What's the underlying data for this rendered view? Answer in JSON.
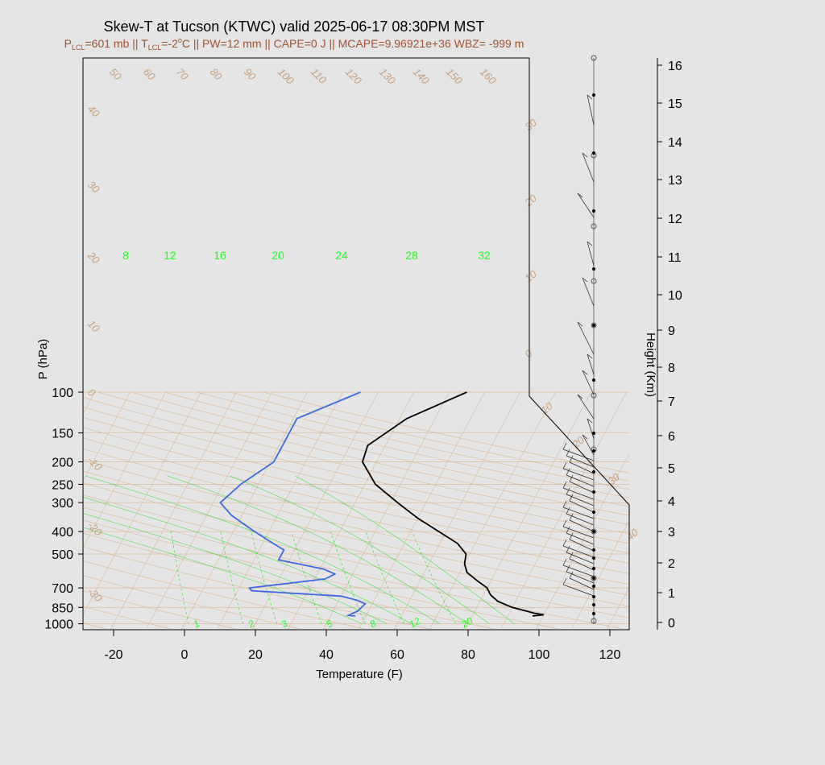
{
  "title": "Skew-T at Tucson (KTWC) valid 2025-06-17 08:30PM MST",
  "subtitle": {
    "p": "P",
    "p_sub": "LCL",
    "p_val": "=601 mb || ",
    "t": "T",
    "t_sub": "LCL",
    "t_val": "=-2",
    "t_sup": "o",
    "t_rest": "C || PW=12 mm || CAPE=0 J || MCAPE=9.96921e+36 WBZ= -999 m"
  },
  "colors": {
    "temperature": "#000000",
    "dewpoint": "#3b6be0",
    "dry_adiabat": "#d9b48c",
    "mixing_ratio": "#33dd33",
    "subtitle": "#a0522d"
  },
  "chart_data": {
    "type": "skew-t",
    "xlabel": "Temperature (F)",
    "ylabel": "P (hPa)",
    "y2label": "Height (Km)",
    "xlim": [
      -28,
      126
    ],
    "ylim": [
      1050,
      100
    ],
    "pressure_ticks": [
      100,
      150,
      200,
      250,
      300,
      400,
      500,
      700,
      850,
      1000
    ],
    "temperature_ticks": [
      -20,
      0,
      20,
      40,
      60,
      80,
      100,
      120
    ],
    "height_ticks": [
      0,
      1,
      2,
      3,
      4,
      5,
      6,
      7,
      8,
      9,
      10,
      11,
      12,
      13,
      14,
      15,
      16
    ],
    "temperature_profile": [
      {
        "p": 925,
        "t": 97
      },
      {
        "p": 915,
        "t": 100
      },
      {
        "p": 900,
        "t": 97
      },
      {
        "p": 850,
        "t": 90
      },
      {
        "p": 800,
        "t": 85
      },
      {
        "p": 750,
        "t": 82
      },
      {
        "p": 700,
        "t": 80
      },
      {
        "p": 650,
        "t": 76
      },
      {
        "p": 600,
        "t": 72
      },
      {
        "p": 550,
        "t": 70
      },
      {
        "p": 500,
        "t": 69
      },
      {
        "p": 450,
        "t": 65
      },
      {
        "p": 400,
        "t": 58
      },
      {
        "p": 350,
        "t": 50
      },
      {
        "p": 300,
        "t": 42
      },
      {
        "p": 250,
        "t": 33
      },
      {
        "p": 200,
        "t": 26
      },
      {
        "p": 170,
        "t": 25
      },
      {
        "p": 130,
        "t": 32
      },
      {
        "p": 100,
        "t": 45
      }
    ],
    "dewpoint_profile": [
      {
        "p": 925,
        "t": 47
      },
      {
        "p": 920,
        "t": 45
      },
      {
        "p": 880,
        "t": 47
      },
      {
        "p": 820,
        "t": 48
      },
      {
        "p": 790,
        "t": 45
      },
      {
        "p": 760,
        "t": 40
      },
      {
        "p": 720,
        "t": 14
      },
      {
        "p": 700,
        "t": 13
      },
      {
        "p": 640,
        "t": 33
      },
      {
        "p": 610,
        "t": 35
      },
      {
        "p": 580,
        "t": 31
      },
      {
        "p": 530,
        "t": 17
      },
      {
        "p": 500,
        "t": 17
      },
      {
        "p": 480,
        "t": 17
      },
      {
        "p": 450,
        "t": 13
      },
      {
        "p": 400,
        "t": 6
      },
      {
        "p": 340,
        "t": -3
      },
      {
        "p": 300,
        "t": -8
      },
      {
        "p": 250,
        "t": -5
      },
      {
        "p": 200,
        "t": 1
      },
      {
        "p": 130,
        "t": 1
      },
      {
        "p": 100,
        "t": 15
      }
    ],
    "dry_adiabat_labels": [
      "50",
      "60",
      "70",
      "80",
      "90",
      "100",
      "110",
      "120",
      "130",
      "140",
      "150",
      "160"
    ],
    "dry_adiabat_left_labels": [
      "40",
      "30",
      "20",
      "10",
      "0",
      "-10",
      "-20",
      "-30"
    ],
    "isotherm_right_labels": [
      "30",
      "20",
      "10",
      "0",
      "10",
      "20",
      "30",
      "40"
    ],
    "mixing_ratio_top_labels": [
      "8",
      "12",
      "16",
      "20",
      "24",
      "28",
      "32"
    ],
    "mixing_ratio_bottom_labels": [
      "1",
      "2",
      "3",
      "5",
      "8",
      "12",
      "20"
    ]
  },
  "wind_dots_count": 30
}
